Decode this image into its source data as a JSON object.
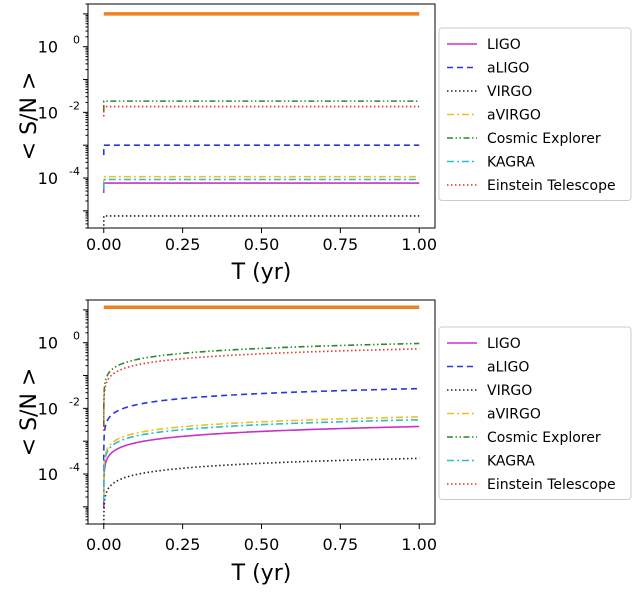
{
  "chart_data": [
    {
      "type": "line",
      "xlabel": "T (yr)",
      "ylabel": "< S/N >",
      "yscale": "log",
      "xlim": [
        -0.05,
        1.05
      ],
      "ylim": [
        3e-06,
        20
      ],
      "xticks": [
        "0.00",
        "0.25",
        "0.50",
        "0.75",
        "1.00"
      ],
      "yticks": [
        {
          "base": "10",
          "exp": "0"
        },
        {
          "base": "10",
          "exp": "-2"
        },
        {
          "base": "10",
          "exp": "-4"
        }
      ],
      "legend_position": "outside-right",
      "series": [
        {
          "name": "LIGO",
          "color": "#c832c8",
          "dash": "solid",
          "values": [
            7e-05,
            7e-05
          ]
        },
        {
          "name": "aLIGO",
          "color": "#2836dc",
          "dash": "dashed",
          "values": [
            0.001,
            0.001
          ]
        },
        {
          "name": "VIRGO",
          "color": "#222222",
          "dash": "dotted",
          "values": [
            7e-06,
            7e-06
          ]
        },
        {
          "name": "aVIRGO",
          "color": "#f0c020",
          "dash": "dashdot",
          "values": [
            0.00011,
            0.00011
          ]
        },
        {
          "name": "Cosmic Explorer",
          "color": "#2a8a2a",
          "dash": "dashdotdot",
          "values": [
            0.022,
            0.022
          ]
        },
        {
          "name": "KAGRA",
          "color": "#28c0cc",
          "dash": "dashdot",
          "values": [
            9e-05,
            9e-05
          ]
        },
        {
          "name": "Einstein Telescope",
          "color": "#e83030",
          "dash": "dotted",
          "values": [
            0.015,
            0.015
          ]
        },
        {
          "name": "",
          "color": "#f08020",
          "dash": "thick",
          "values": [
            10,
            10
          ]
        }
      ]
    },
    {
      "type": "line",
      "xlabel": "T (yr)",
      "ylabel": "< S/N >",
      "yscale": "log",
      "xlim": [
        -0.05,
        1.05
      ],
      "ylim": [
        3e-06,
        20
      ],
      "xticks": [
        "0.00",
        "0.25",
        "0.50",
        "0.75",
        "1.00"
      ],
      "yticks": [
        {
          "base": "10",
          "exp": "0"
        },
        {
          "base": "10",
          "exp": "-2"
        },
        {
          "base": "10",
          "exp": "-4"
        }
      ],
      "legend_position": "outside-right",
      "curve_form": "value grows as sqrt(T), reaching the listed value at T = 1.00",
      "series": [
        {
          "name": "LIGO",
          "color": "#c832c8",
          "dash": "solid",
          "value_at_1yr": 0.0028
        },
        {
          "name": "aLIGO",
          "color": "#2836dc",
          "dash": "dashed",
          "value_at_1yr": 0.04
        },
        {
          "name": "VIRGO",
          "color": "#222222",
          "dash": "dotted",
          "value_at_1yr": 0.0003
        },
        {
          "name": "aVIRGO",
          "color": "#f0c020",
          "dash": "dashdot",
          "value_at_1yr": 0.0055
        },
        {
          "name": "Cosmic Explorer",
          "color": "#2a8a2a",
          "dash": "dashdotdot",
          "value_at_1yr": 0.95
        },
        {
          "name": "KAGRA",
          "color": "#28c0cc",
          "dash": "dashdot",
          "value_at_1yr": 0.0045
        },
        {
          "name": "Einstein Telescope",
          "color": "#e83030",
          "dash": "dotted",
          "value_at_1yr": 0.65
        },
        {
          "name": "",
          "color": "#f08020",
          "dash": "thick",
          "value_at_1yr": 12,
          "constant": true
        }
      ]
    }
  ]
}
